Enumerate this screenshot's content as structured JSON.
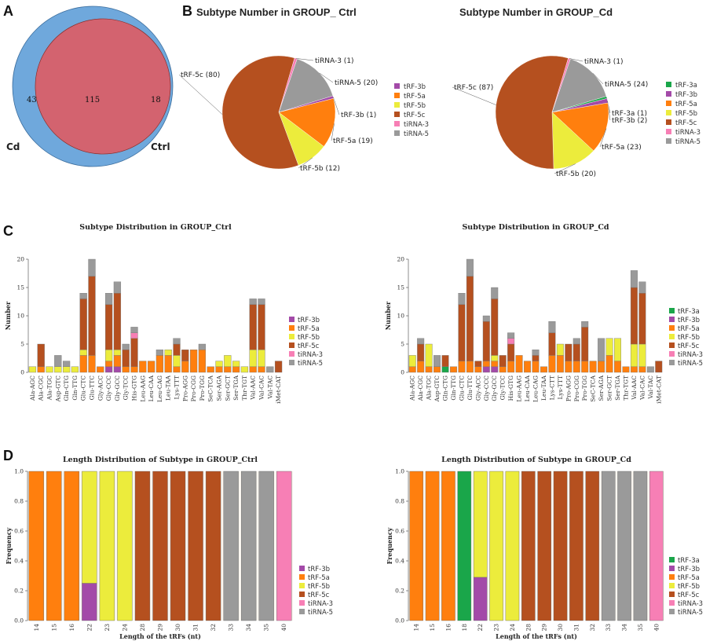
{
  "panels": {
    "a": "A",
    "b": "B",
    "c": "C",
    "d": "D"
  },
  "colors": {
    "tRF-3a": "#1aa64a",
    "tRF-3b": "#a34aa8",
    "tRF-5a": "#ff7f0e",
    "tRF-5b": "#ecec3c",
    "tRF-5c": "#b5501f",
    "tiRNA-3": "#f77fb5",
    "tiRNA-5": "#9a9a9a",
    "venn_cd": "#6fa8dc",
    "venn_ctrl": "#f4957e",
    "venn_overlap": "#d3636f"
  },
  "chart_data": [
    {
      "id": "venn",
      "type": "venn",
      "sets": [
        "Cd",
        "Ctrl"
      ],
      "values": {
        "only_cd": 43,
        "both": 115,
        "only_ctrl": 18
      }
    },
    {
      "id": "pie_ctrl",
      "type": "pie",
      "title": "Subtype Number in GROUP_ Ctrl",
      "slices": [
        {
          "name": "tiRNA-5",
          "value": 20,
          "label": "tiRNA-5 (20)"
        },
        {
          "name": "tRF-3b",
          "value": 1,
          "label": "tRF-3b (1)"
        },
        {
          "name": "tRF-5a",
          "value": 19,
          "label": "tRF-5a (19)"
        },
        {
          "name": "tRF-5b",
          "value": 12,
          "label": "tRF-5b (12)"
        },
        {
          "name": "tRF-5c",
          "value": 80,
          "label": "tRF-5c (80)"
        },
        {
          "name": "tiRNA-3",
          "value": 1,
          "label": "tiRNA-3 (1)"
        }
      ],
      "legend": [
        "tRF-3b",
        "tRF-5a",
        "tRF-5b",
        "tRF-5c",
        "tiRNA-3",
        "tiRNA-5"
      ]
    },
    {
      "id": "pie_cd",
      "type": "pie",
      "title": "Subtype Number in GROUP_Cd",
      "slices": [
        {
          "name": "tiRNA-5",
          "value": 24,
          "label": "tiRNA-5 (24)"
        },
        {
          "name": "tRF-3a",
          "value": 1,
          "label": "tRF-3a (1)"
        },
        {
          "name": "tRF-3b",
          "value": 2,
          "label": "tRF-3b (2)"
        },
        {
          "name": "tRF-5a",
          "value": 23,
          "label": "tRF-5a (23)"
        },
        {
          "name": "tRF-5b",
          "value": 20,
          "label": "tRF-5b (20)"
        },
        {
          "name": "tRF-5c",
          "value": 87,
          "label": "tRF-5c (87)"
        },
        {
          "name": "tiRNA-3",
          "value": 1,
          "label": "tiRNA-3 (1)"
        }
      ],
      "legend": [
        "tRF-3a",
        "tRF-3b",
        "tRF-5a",
        "tRF-5b",
        "tRF-5c",
        "tiRNA-3",
        "tiRNA-5"
      ]
    },
    {
      "id": "dist_ctrl",
      "type": "bar",
      "stacked": true,
      "title": "Subtype Distribution in GROUP_Ctrl",
      "ylabel": "Number",
      "ylim": [
        0,
        20
      ],
      "yticks": [
        0,
        5,
        10,
        15,
        20
      ],
      "categories": [
        "Ala-AGC",
        "Ala-CGC",
        "Ala-TGC",
        "Asp-GTC",
        "Gln-CTG",
        "Gln-TTG",
        "Glu-CTC",
        "Glu-TTC",
        "Gly-ACC",
        "Gly-CCC",
        "Gly-GCC",
        "Gly-TCC",
        "His-GTG",
        "Leu-AAG",
        "Leu-CAA",
        "Leu-CAG",
        "Leu-TAA",
        "Lys-TTT",
        "Pro-AGG",
        "Pro-CGG",
        "Pro-TGG",
        "SeC-TCA",
        "Ser-AGA",
        "Ser-GCT",
        "Ser-TGA",
        "Thr-TGT",
        "Val-AAC",
        "Val-CAC",
        "Val-TAC",
        "iMet-CAT"
      ],
      "series": [
        {
          "name": "tRF-3b",
          "values": [
            0,
            0,
            0,
            0,
            0,
            0,
            0,
            0,
            0,
            1,
            1,
            0,
            0,
            0,
            0,
            0,
            0,
            0,
            0,
            0,
            0,
            0,
            0,
            0,
            0,
            0,
            0,
            0,
            0,
            0
          ]
        },
        {
          "name": "tRF-5a",
          "values": [
            0,
            1,
            0,
            0,
            0,
            0,
            3,
            3,
            1,
            1,
            2,
            1,
            1,
            2,
            2,
            3,
            3,
            1,
            2,
            4,
            4,
            1,
            1,
            1,
            1,
            0,
            1,
            1,
            0,
            0
          ]
        },
        {
          "name": "tRF-5b",
          "values": [
            1,
            0,
            1,
            1,
            1,
            1,
            1,
            0,
            0,
            2,
            1,
            0,
            0,
            0,
            0,
            0,
            1,
            2,
            0,
            0,
            0,
            0,
            1,
            2,
            1,
            1,
            3,
            3,
            0,
            0
          ]
        },
        {
          "name": "tRF-5c",
          "values": [
            0,
            4,
            0,
            0,
            0,
            0,
            9,
            14,
            0,
            8,
            10,
            3,
            5,
            0,
            0,
            0,
            0,
            2,
            2,
            0,
            0,
            0,
            0,
            0,
            0,
            0,
            8,
            8,
            0,
            2
          ]
        },
        {
          "name": "tiRNA-3",
          "values": [
            0,
            0,
            0,
            0,
            0,
            0,
            0,
            0,
            0,
            0,
            0,
            0,
            1,
            0,
            0,
            0,
            0,
            0,
            0,
            0,
            0,
            0,
            0,
            0,
            0,
            0,
            0,
            0,
            0,
            0
          ]
        },
        {
          "name": "tiRNA-5",
          "values": [
            0,
            0,
            0,
            2,
            1,
            0,
            1,
            3,
            0,
            2,
            2,
            1,
            1,
            0,
            0,
            1,
            0,
            1,
            0,
            0,
            1,
            0,
            0,
            0,
            0,
            0,
            1,
            1,
            1,
            0
          ]
        }
      ],
      "legend": [
        "tRF-3b",
        "tRF-5a",
        "tRF-5b",
        "tRF-5c",
        "tiRNA-3",
        "tiRNA-5"
      ]
    },
    {
      "id": "dist_cd",
      "type": "bar",
      "stacked": true,
      "title": "Subtype Distribution in GROUP_Cd",
      "ylabel": "Number",
      "ylim": [
        0,
        20
      ],
      "yticks": [
        0,
        5,
        10,
        15,
        20
      ],
      "categories": [
        "Ala-AGC",
        "Ala-CGC",
        "Ala-TGC",
        "Asp-GTC",
        "Gln-CTG",
        "Gln-TTG",
        "Glu-CTC",
        "Glu-TTC",
        "Gly-ACC",
        "Gly-CCC",
        "Gly-GCC",
        "Gly-TCC",
        "His-GTG",
        "Leu-AAG",
        "Leu-CAA",
        "Leu-CAG",
        "Leu-TAA",
        "Lys-CTT",
        "Lys-TTT",
        "Pro-AGG",
        "Pro-CGG",
        "Pro-TGG",
        "SeC-TCA",
        "Ser-AGA",
        "Ser-GCT",
        "Ser-TGA",
        "Thr-TGT",
        "Val-AAC",
        "Val-CAC",
        "Val-TAC",
        "iMet-CAT"
      ],
      "series": [
        {
          "name": "tRF-3a",
          "values": [
            0,
            0,
            0,
            0,
            1,
            0,
            0,
            0,
            0,
            0,
            0,
            0,
            0,
            0,
            0,
            0,
            0,
            0,
            0,
            0,
            0,
            0,
            0,
            0,
            0,
            0,
            0,
            0,
            0,
            0,
            0
          ]
        },
        {
          "name": "tRF-3b",
          "values": [
            0,
            0,
            0,
            0,
            0,
            0,
            0,
            0,
            0,
            1,
            1,
            0,
            0,
            0,
            0,
            0,
            0,
            0,
            0,
            0,
            0,
            0,
            0,
            0,
            0,
            0,
            0,
            0,
            0,
            0,
            0
          ]
        },
        {
          "name": "tRF-5a",
          "values": [
            1,
            2,
            1,
            1,
            0,
            1,
            2,
            2,
            1,
            1,
            1,
            1,
            2,
            3,
            2,
            2,
            1,
            3,
            3,
            2,
            2,
            2,
            2,
            2,
            3,
            2,
            1,
            1,
            1,
            0,
            0
          ]
        },
        {
          "name": "tRF-5b",
          "values": [
            2,
            0,
            4,
            0,
            0,
            0,
            0,
            0,
            0,
            0,
            1,
            0,
            0,
            0,
            0,
            0,
            0,
            0,
            2,
            0,
            0,
            0,
            0,
            0,
            3,
            4,
            0,
            4,
            4,
            0,
            0
          ]
        },
        {
          "name": "tRF-5c",
          "values": [
            0,
            3,
            0,
            0,
            2,
            0,
            10,
            15,
            1,
            7,
            10,
            2,
            3,
            0,
            0,
            1,
            0,
            4,
            0,
            3,
            3,
            6,
            0,
            0,
            0,
            0,
            0,
            10,
            9,
            0,
            2
          ]
        },
        {
          "name": "tiRNA-3",
          "values": [
            0,
            0,
            0,
            0,
            0,
            0,
            0,
            0,
            0,
            0,
            0,
            0,
            1,
            0,
            0,
            0,
            0,
            0,
            0,
            0,
            0,
            0,
            0,
            0,
            0,
            0,
            0,
            0,
            0,
            0,
            0
          ]
        },
        {
          "name": "tiRNA-5",
          "values": [
            0,
            1,
            0,
            2,
            0,
            0,
            2,
            3,
            0,
            1,
            2,
            0,
            1,
            0,
            0,
            1,
            0,
            2,
            0,
            0,
            1,
            1,
            0,
            4,
            0,
            0,
            0,
            3,
            2,
            1,
            0
          ]
        }
      ],
      "legend": [
        "tRF-3a",
        "tRF-3b",
        "tRF-5a",
        "tRF-5b",
        "tRF-5c",
        "tiRNA-3",
        "tiRNA-5"
      ]
    },
    {
      "id": "len_ctrl",
      "type": "bar",
      "stacked": true,
      "title": "Length Distribution of Subtype in GROUP_Ctrl",
      "xlabel": "Length of the tRFs (nt)",
      "ylabel": "Frequency",
      "ylim": [
        0,
        1
      ],
      "yticks": [
        "0.0",
        "0.2",
        "0.4",
        "0.6",
        "0.8",
        "1.0"
      ],
      "categories": [
        "14",
        "15",
        "16",
        "22",
        "23",
        "24",
        "28",
        "29",
        "30",
        "31",
        "32",
        "33",
        "34",
        "35",
        "40"
      ],
      "series": [
        {
          "name": "tRF-3b",
          "values": [
            0,
            0,
            0,
            0.25,
            0,
            0,
            0,
            0,
            0,
            0,
            0,
            0,
            0,
            0,
            0
          ]
        },
        {
          "name": "tRF-5a",
          "values": [
            1,
            1,
            1,
            0,
            0,
            0,
            0,
            0,
            0,
            0,
            0,
            0,
            0,
            0,
            0
          ]
        },
        {
          "name": "tRF-5b",
          "values": [
            0,
            0,
            0,
            0.75,
            1,
            1,
            0,
            0,
            0,
            0,
            0,
            0,
            0,
            0,
            0
          ]
        },
        {
          "name": "tRF-5c",
          "values": [
            0,
            0,
            0,
            0,
            0,
            0,
            1,
            1,
            1,
            1,
            1,
            0,
            0,
            0,
            0
          ]
        },
        {
          "name": "tiRNA-3",
          "values": [
            0,
            0,
            0,
            0,
            0,
            0,
            0,
            0,
            0,
            0,
            0,
            0,
            0,
            0,
            1
          ]
        },
        {
          "name": "tiRNA-5",
          "values": [
            0,
            0,
            0,
            0,
            0,
            0,
            0,
            0,
            0,
            0,
            0,
            1,
            1,
            1,
            0
          ]
        }
      ],
      "legend": [
        "tRF-3b",
        "tRF-5a",
        "tRF-5b",
        "tRF-5c",
        "tiRNA-3",
        "tiRNA-5"
      ]
    },
    {
      "id": "len_cd",
      "type": "bar",
      "stacked": true,
      "title": "Length Distribution of Subtype in GROUP_Cd",
      "xlabel": "Length of the tRFs (nt)",
      "ylabel": "Frequency",
      "ylim": [
        0,
        1
      ],
      "yticks": [
        "0.0",
        "0.2",
        "0.4",
        "0.6",
        "0.8",
        "1.0"
      ],
      "categories": [
        "14",
        "15",
        "16",
        "18",
        "22",
        "23",
        "24",
        "28",
        "29",
        "30",
        "31",
        "32",
        "33",
        "34",
        "35",
        "40"
      ],
      "series": [
        {
          "name": "tRF-3a",
          "values": [
            0,
            0,
            0,
            1,
            0,
            0,
            0,
            0,
            0,
            0,
            0,
            0,
            0,
            0,
            0,
            0
          ]
        },
        {
          "name": "tRF-3b",
          "values": [
            0,
            0,
            0,
            0,
            0.29,
            0,
            0,
            0,
            0,
            0,
            0,
            0,
            0,
            0,
            0,
            0
          ]
        },
        {
          "name": "tRF-5a",
          "values": [
            1,
            1,
            1,
            0,
            0,
            0,
            0,
            0,
            0,
            0,
            0,
            0,
            0,
            0,
            0,
            0
          ]
        },
        {
          "name": "tRF-5b",
          "values": [
            0,
            0,
            0,
            0,
            0.71,
            1,
            1,
            0,
            0,
            0,
            0,
            0,
            0,
            0,
            0,
            0
          ]
        },
        {
          "name": "tRF-5c",
          "values": [
            0,
            0,
            0,
            0,
            0,
            0,
            0,
            1,
            1,
            1,
            1,
            1,
            0,
            0,
            0,
            0
          ]
        },
        {
          "name": "tiRNA-3",
          "values": [
            0,
            0,
            0,
            0,
            0,
            0,
            0,
            0,
            0,
            0,
            0,
            0,
            0,
            0,
            0,
            1
          ]
        },
        {
          "name": "tiRNA-5",
          "values": [
            0,
            0,
            0,
            0,
            0,
            0,
            0,
            0,
            0,
            0,
            0,
            0,
            1,
            1,
            1,
            0
          ]
        }
      ],
      "legend": [
        "tRF-3a",
        "tRF-3b",
        "tRF-5a",
        "tRF-5b",
        "tRF-5c",
        "tiRNA-3",
        "tiRNA-5"
      ]
    }
  ]
}
